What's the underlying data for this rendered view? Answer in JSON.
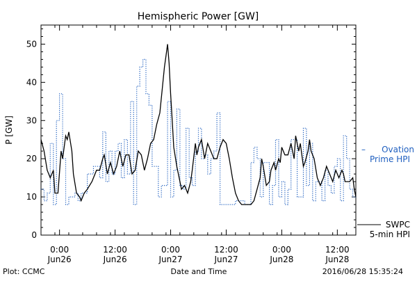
{
  "chart_data": {
    "type": "line",
    "title": "Hemispheric Power [GW]",
    "ylabel": "P [GW]",
    "xlabel": "Date and Time",
    "ylim": [
      0,
      55
    ],
    "xlim": [
      "2016-06-25T20:00",
      "2016-06-28T16:00"
    ],
    "yticks": [
      0,
      10,
      20,
      30,
      40,
      50
    ],
    "xticks": [
      {
        "t": "2016-06-26T00:00",
        "line1": "0:00",
        "line2": "Jun26"
      },
      {
        "t": "2016-06-26T12:00",
        "line1": "12:00",
        "line2": "Jun26"
      },
      {
        "t": "2016-06-27T00:00",
        "line1": "0:00",
        "line2": "Jun27"
      },
      {
        "t": "2016-06-27T12:00",
        "line1": "12:00",
        "line2": "Jun27"
      },
      {
        "t": "2016-06-28T00:00",
        "line1": "0:00",
        "line2": "Jun28"
      },
      {
        "t": "2016-06-28T12:00",
        "line1": "12:00",
        "line2": "Jun28"
      }
    ],
    "series": [
      {
        "name": "Ovation Prime HPI",
        "color": "#1f5fbf",
        "style": "dotted-step",
        "points": [
          [
            "2016-06-25T20:00",
            12
          ],
          [
            "2016-06-25T20:40",
            9
          ],
          [
            "2016-06-25T21:20",
            11
          ],
          [
            "2016-06-25T22:00",
            24
          ],
          [
            "2016-06-25T22:40",
            8
          ],
          [
            "2016-06-25T23:20",
            30
          ],
          [
            "2016-06-26T00:00",
            37
          ],
          [
            "2016-06-26T00:40",
            20
          ],
          [
            "2016-06-26T01:20",
            8
          ],
          [
            "2016-06-26T02:00",
            10
          ],
          [
            "2016-06-26T03:20",
            11
          ],
          [
            "2016-06-26T04:00",
            9
          ],
          [
            "2016-06-26T04:40",
            11
          ],
          [
            "2016-06-26T06:00",
            16
          ],
          [
            "2016-06-26T07:20",
            18
          ],
          [
            "2016-06-26T08:40",
            15
          ],
          [
            "2016-06-26T09:20",
            27
          ],
          [
            "2016-06-26T10:00",
            14
          ],
          [
            "2016-06-26T10:40",
            22
          ],
          [
            "2016-06-26T11:20",
            16
          ],
          [
            "2016-06-26T12:00",
            22
          ],
          [
            "2016-06-26T12:40",
            24
          ],
          [
            "2016-06-26T13:20",
            15
          ],
          [
            "2016-06-26T14:00",
            25
          ],
          [
            "2016-06-26T14:40",
            16
          ],
          [
            "2016-06-26T15:20",
            35
          ],
          [
            "2016-06-26T16:00",
            8
          ],
          [
            "2016-06-26T16:40",
            39
          ],
          [
            "2016-06-26T17:20",
            44
          ],
          [
            "2016-06-26T18:00",
            46
          ],
          [
            "2016-06-26T18:40",
            37
          ],
          [
            "2016-06-26T19:20",
            34
          ],
          [
            "2016-06-26T20:00",
            18
          ],
          [
            "2016-06-26T21:20",
            10
          ],
          [
            "2016-06-26T22:00",
            13
          ],
          [
            "2016-06-26T23:20",
            35
          ],
          [
            "2016-06-27T00:00",
            10
          ],
          [
            "2016-06-27T00:40",
            17
          ],
          [
            "2016-06-27T01:20",
            33
          ],
          [
            "2016-06-27T02:00",
            13
          ],
          [
            "2016-06-27T02:40",
            12
          ],
          [
            "2016-06-27T03:20",
            28
          ],
          [
            "2016-06-27T04:00",
            15
          ],
          [
            "2016-06-27T04:40",
            13
          ],
          [
            "2016-06-27T05:20",
            22
          ],
          [
            "2016-06-27T06:00",
            28
          ],
          [
            "2016-06-27T06:40",
            20
          ],
          [
            "2016-06-27T07:20",
            21
          ],
          [
            "2016-06-27T08:00",
            16
          ],
          [
            "2016-06-27T08:40",
            20
          ],
          [
            "2016-06-27T09:20",
            22
          ],
          [
            "2016-06-27T10:00",
            32
          ],
          [
            "2016-06-27T10:40",
            8
          ],
          [
            "2016-06-27T11:20",
            8
          ],
          [
            "2016-06-27T14:00",
            9
          ],
          [
            "2016-06-27T16:00",
            8
          ],
          [
            "2016-06-27T17:20",
            19
          ],
          [
            "2016-06-27T18:00",
            23
          ],
          [
            "2016-06-27T18:40",
            20
          ],
          [
            "2016-06-27T19:20",
            10
          ],
          [
            "2016-06-27T20:00",
            19
          ],
          [
            "2016-06-27T21:20",
            8
          ],
          [
            "2016-06-27T22:00",
            13
          ],
          [
            "2016-06-27T22:40",
            25
          ],
          [
            "2016-06-27T23:20",
            10
          ],
          [
            "2016-06-28T00:00",
            14
          ],
          [
            "2016-06-28T00:40",
            8
          ],
          [
            "2016-06-28T01:20",
            12
          ],
          [
            "2016-06-28T02:00",
            25
          ],
          [
            "2016-06-28T03:20",
            10
          ],
          [
            "2016-06-28T04:40",
            28
          ],
          [
            "2016-06-28T05:20",
            13
          ],
          [
            "2016-06-28T06:00",
            24
          ],
          [
            "2016-06-28T06:40",
            9
          ],
          [
            "2016-06-28T07:20",
            14
          ],
          [
            "2016-06-28T08:40",
            9
          ],
          [
            "2016-06-28T09:20",
            17
          ],
          [
            "2016-06-28T10:00",
            13
          ],
          [
            "2016-06-28T10:40",
            11
          ],
          [
            "2016-06-28T11:20",
            18
          ],
          [
            "2016-06-28T12:00",
            20
          ],
          [
            "2016-06-28T12:40",
            9
          ],
          [
            "2016-06-28T13:20",
            26
          ],
          [
            "2016-06-28T14:00",
            20
          ],
          [
            "2016-06-28T14:40",
            12
          ],
          [
            "2016-06-28T15:20",
            10
          ]
        ]
      },
      {
        "name": "SWPC 5-min HPI",
        "color": "#000000",
        "style": "solid",
        "points": [
          [
            "2016-06-25T20:00",
            25
          ],
          [
            "2016-06-25T20:40",
            22
          ],
          [
            "2016-06-25T21:20",
            17
          ],
          [
            "2016-06-25T22:00",
            15
          ],
          [
            "2016-06-25T22:40",
            17
          ],
          [
            "2016-06-25T23:00",
            11
          ],
          [
            "2016-06-25T23:40",
            11
          ],
          [
            "2016-06-26T00:20",
            22
          ],
          [
            "2016-06-26T00:40",
            20
          ],
          [
            "2016-06-26T01:20",
            26
          ],
          [
            "2016-06-26T01:40",
            25
          ],
          [
            "2016-06-26T02:00",
            27
          ],
          [
            "2016-06-26T02:40",
            22
          ],
          [
            "2016-06-26T03:00",
            16
          ],
          [
            "2016-06-26T03:40",
            11
          ],
          [
            "2016-06-26T04:20",
            10
          ],
          [
            "2016-06-26T04:40",
            9
          ],
          [
            "2016-06-26T05:20",
            11
          ],
          [
            "2016-06-26T06:00",
            12
          ],
          [
            "2016-06-26T07:00",
            14
          ],
          [
            "2016-06-26T08:00",
            17
          ],
          [
            "2016-06-26T08:40",
            17
          ],
          [
            "2016-06-26T09:20",
            20
          ],
          [
            "2016-06-26T09:40",
            21
          ],
          [
            "2016-06-26T10:20",
            16
          ],
          [
            "2016-06-26T11:00",
            19
          ],
          [
            "2016-06-26T11:40",
            16
          ],
          [
            "2016-06-26T12:20",
            18
          ],
          [
            "2016-06-26T13:00",
            22
          ],
          [
            "2016-06-26T13:40",
            18
          ],
          [
            "2016-06-26T14:20",
            21
          ],
          [
            "2016-06-26T15:00",
            21
          ],
          [
            "2016-06-26T15:40",
            16
          ],
          [
            "2016-06-26T16:20",
            17
          ],
          [
            "2016-06-26T17:00",
            22
          ],
          [
            "2016-06-26T17:40",
            21
          ],
          [
            "2016-06-26T18:20",
            17
          ],
          [
            "2016-06-26T19:00",
            20
          ],
          [
            "2016-06-26T19:40",
            24
          ],
          [
            "2016-06-26T20:20",
            25
          ],
          [
            "2016-06-26T21:00",
            29
          ],
          [
            "2016-06-26T21:40",
            32
          ],
          [
            "2016-06-26T22:20",
            40
          ],
          [
            "2016-06-26T22:40",
            44
          ],
          [
            "2016-06-26T23:00",
            47
          ],
          [
            "2016-06-26T23:20",
            50
          ],
          [
            "2016-06-26T23:40",
            45
          ],
          [
            "2016-06-27T00:00",
            37
          ],
          [
            "2016-06-27T00:20",
            30
          ],
          [
            "2016-06-27T00:40",
            23
          ],
          [
            "2016-06-27T01:20",
            18
          ],
          [
            "2016-06-27T02:00",
            14
          ],
          [
            "2016-06-27T02:20",
            12
          ],
          [
            "2016-06-27T03:00",
            13
          ],
          [
            "2016-06-27T03:40",
            11
          ],
          [
            "2016-06-27T04:20",
            14
          ],
          [
            "2016-06-27T04:40",
            17
          ],
          [
            "2016-06-27T05:20",
            24
          ],
          [
            "2016-06-27T05:40",
            21
          ],
          [
            "2016-06-27T06:00",
            23
          ],
          [
            "2016-06-27T06:40",
            25
          ],
          [
            "2016-06-27T07:20",
            20
          ],
          [
            "2016-06-27T08:00",
            24
          ],
          [
            "2016-06-27T08:40",
            22
          ],
          [
            "2016-06-27T09:20",
            20
          ],
          [
            "2016-06-27T10:00",
            20
          ],
          [
            "2016-06-27T10:40",
            23
          ],
          [
            "2016-06-27T11:20",
            25
          ],
          [
            "2016-06-27T12:00",
            24
          ],
          [
            "2016-06-27T12:40",
            20
          ],
          [
            "2016-06-27T13:20",
            15
          ],
          [
            "2016-06-27T14:00",
            11
          ],
          [
            "2016-06-27T14:40",
            9
          ],
          [
            "2016-06-27T15:20",
            8
          ],
          [
            "2016-06-27T16:00",
            8
          ],
          [
            "2016-06-27T17:20",
            8
          ],
          [
            "2016-06-27T18:00",
            9
          ],
          [
            "2016-06-27T18:40",
            12
          ],
          [
            "2016-06-27T19:20",
            15
          ],
          [
            "2016-06-27T19:40",
            20
          ],
          [
            "2016-06-27T20:00",
            18
          ],
          [
            "2016-06-27T20:40",
            13
          ],
          [
            "2016-06-27T21:20",
            14
          ],
          [
            "2016-06-27T21:40",
            17
          ],
          [
            "2016-06-27T22:20",
            19
          ],
          [
            "2016-06-27T22:40",
            17
          ],
          [
            "2016-06-27T23:20",
            20
          ],
          [
            "2016-06-27T23:40",
            19
          ],
          [
            "2016-06-28T00:00",
            23
          ],
          [
            "2016-06-28T00:40",
            21
          ],
          [
            "2016-06-28T01:20",
            21
          ],
          [
            "2016-06-28T02:00",
            24
          ],
          [
            "2016-06-28T02:40",
            20
          ],
          [
            "2016-06-28T03:00",
            26
          ],
          [
            "2016-06-28T03:40",
            22
          ],
          [
            "2016-06-28T04:00",
            24
          ],
          [
            "2016-06-28T04:40",
            18
          ],
          [
            "2016-06-28T05:00",
            19
          ],
          [
            "2016-06-28T05:40",
            22
          ],
          [
            "2016-06-28T06:00",
            25
          ],
          [
            "2016-06-28T06:20",
            22
          ],
          [
            "2016-06-28T07:00",
            20
          ],
          [
            "2016-06-28T07:40",
            15
          ],
          [
            "2016-06-28T08:20",
            13
          ],
          [
            "2016-06-28T09:00",
            15
          ],
          [
            "2016-06-28T09:40",
            18
          ],
          [
            "2016-06-28T10:20",
            16
          ],
          [
            "2016-06-28T11:00",
            14
          ],
          [
            "2016-06-28T11:40",
            17
          ],
          [
            "2016-06-28T12:20",
            15
          ],
          [
            "2016-06-28T13:00",
            17
          ],
          [
            "2016-06-28T13:20",
            16
          ],
          [
            "2016-06-28T13:40",
            14
          ],
          [
            "2016-06-28T14:20",
            14
          ],
          [
            "2016-06-28T14:40",
            14
          ],
          [
            "2016-06-28T15:20",
            15
          ],
          [
            "2016-06-28T15:40",
            12
          ],
          [
            "2016-06-28T16:00",
            10
          ]
        ]
      }
    ],
    "legend": [
      {
        "marker": "–",
        "lines": [
          "Ovation",
          "Prime HPI"
        ],
        "color": "#1f5fbf"
      },
      {
        "marker": "",
        "lines": [
          "SWPC",
          "5-min HPI"
        ],
        "color": "#000000"
      }
    ],
    "legend_placement": "right"
  },
  "footer": {
    "left": "Plot: CCMC",
    "center": "Date and Time",
    "right": "2016/06/28 15:35:24"
  }
}
